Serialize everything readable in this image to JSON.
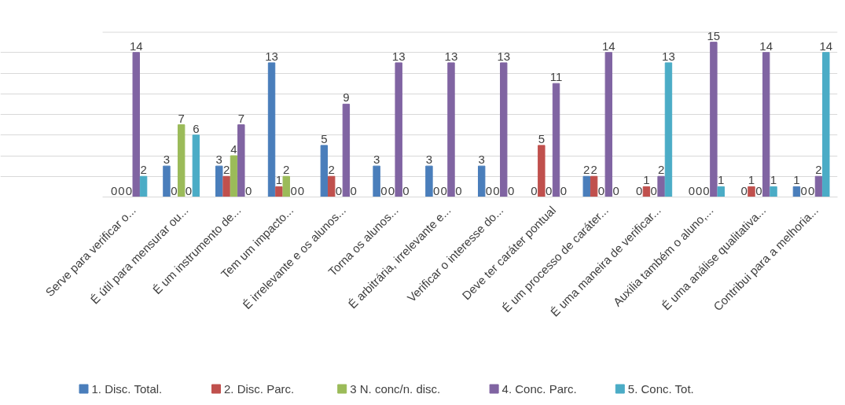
{
  "chart_data": {
    "type": "bar",
    "categories": [
      "Serve para verificar o...",
      "É útil para mensurar ou...",
      "É um instrumento de...",
      "Tem um impacto...",
      "É irrelevante e os alunos...",
      "Torna os alunos...",
      "É arbitrária, irrelevante e...",
      "Verificar o interesse do...",
      "Deve ter caráter pontual",
      "É um processo de caráter...",
      "É uma maneira de verificar...",
      "Auxilia também o aluno,...",
      "É uma análise qualitativa...",
      "Contribui para a melhoria..."
    ],
    "series": [
      {
        "name": "1. Disc. Total.",
        "color": "#4a7ebb",
        "values": [
          0,
          3,
          3,
          13,
          5,
          3,
          3,
          3,
          0,
          2,
          0,
          0,
          0,
          1
        ]
      },
      {
        "name": "2. Disc. Parc.",
        "color": "#c0504d",
        "values": [
          0,
          0,
          2,
          1,
          2,
          0,
          0,
          0,
          5,
          2,
          1,
          0,
          1,
          0
        ]
      },
      {
        "name": "3 N. conc/n. disc.",
        "color": "#9bbb59",
        "values": [
          0,
          7,
          4,
          2,
          0,
          0,
          0,
          0,
          0,
          0,
          0,
          0,
          0,
          0
        ]
      },
      {
        "name": "4. Conc. Parc.",
        "color": "#8064a2",
        "values": [
          14,
          0,
          7,
          0,
          9,
          13,
          13,
          13,
          11,
          14,
          2,
          15,
          14,
          2
        ]
      },
      {
        "name": "5. Conc. Tot.",
        "color": "#4bacc6",
        "values": [
          2,
          6,
          0,
          0,
          0,
          0,
          0,
          0,
          0,
          0,
          13,
          1,
          1,
          14
        ]
      }
    ],
    "ylim": [
      0,
      16
    ],
    "yticks": [
      {
        "value": 0,
        "label": null
      },
      {
        "value": 2,
        "label": null
      },
      {
        "value": 4,
        "label": null
      },
      {
        "value": 6,
        "label": null
      },
      {
        "value": 8,
        "label": null
      },
      {
        "value": 10,
        "label": null
      },
      {
        "value": 12,
        "label": null
      },
      {
        "value": 14,
        "label": null
      },
      {
        "value": 16,
        "label": null
      }
    ],
    "tick_labels": "x",
    "grid": "y",
    "data_labels": true,
    "legend": "bottom"
  }
}
